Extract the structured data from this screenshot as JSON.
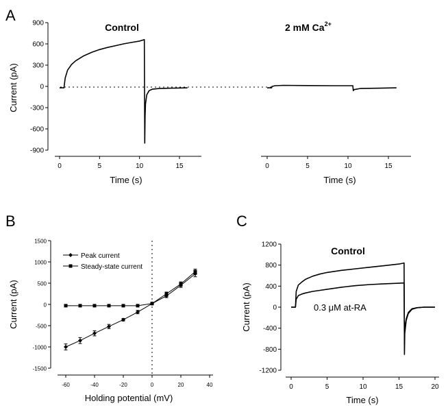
{
  "panels": {
    "a": {
      "letter": "A",
      "ylabel": "Current (pA)",
      "xlabel_left": "Time (s)",
      "xlabel_right": "Time (s)",
      "yticks": [
        "900",
        "600",
        "300",
        "0",
        "-300",
        "-600",
        "-900"
      ],
      "xticks_left": [
        "0",
        "5",
        "10",
        "15"
      ],
      "xticks_right": [
        "0",
        "5",
        "10",
        "15"
      ],
      "control_label": "Control",
      "ca_label": "2 mM Ca",
      "ca_superscript": "2+"
    },
    "b": {
      "letter": "B",
      "ylabel": "Current (pA)",
      "xlabel": "Holding potential (mV)",
      "yticks": [
        "1500",
        "1000",
        "500",
        "0",
        "-500",
        "-1000",
        "-1500"
      ],
      "xticks": [
        "-60",
        "-40",
        "-20",
        "0",
        "20",
        "40"
      ],
      "legend_peak": "Peak current",
      "legend_steady": "Steady-state current"
    },
    "c": {
      "letter": "C",
      "ylabel": "Current (pA)",
      "xlabel": "Time (s)",
      "yticks": [
        "1200",
        "800",
        "400",
        "0",
        "-400",
        "-800",
        "-1200"
      ],
      "xticks": [
        "0",
        "5",
        "10",
        "15",
        "20"
      ],
      "control_label": "Control",
      "atra_label": "0.3 μM at-RA"
    }
  },
  "chart_data": [
    {
      "panel": "A-left",
      "type": "line",
      "title": "Control",
      "xlabel": "Time (s)",
      "ylabel": "Current (pA)",
      "xlim": [
        -1,
        16.5
      ],
      "ylim": [
        -900,
        900
      ],
      "grid": false,
      "series": [
        {
          "x": [
            0,
            0.55,
            0.7,
            1,
            1.5,
            2,
            3,
            4,
            5,
            6,
            7,
            8,
            9,
            10,
            10.6,
            10.65,
            10.7,
            10.75,
            10.9,
            11.2,
            11.6,
            12.5,
            14,
            16
          ],
          "y": [
            -20,
            -20,
            120,
            230,
            310,
            360,
            430,
            480,
            520,
            550,
            575,
            600,
            620,
            640,
            660,
            -800,
            -420,
            -250,
            -120,
            -60,
            -40,
            -30,
            -25,
            -20
          ]
        }
      ]
    },
    {
      "panel": "A-right",
      "type": "line",
      "title": "2 mM Ca2+",
      "xlabel": "Time (s)",
      "ylabel": "Current (pA)",
      "xlim": [
        -1,
        16.5
      ],
      "ylim": [
        -900,
        900
      ],
      "grid": false,
      "series": [
        {
          "x": [
            0,
            0.55,
            0.6,
            1,
            2,
            5,
            8,
            10.6,
            10.65,
            10.75,
            11.5,
            14,
            16
          ],
          "y": [
            -20,
            -20,
            0,
            10,
            15,
            12,
            10,
            10,
            -60,
            -45,
            -30,
            -25,
            -20
          ]
        }
      ]
    },
    {
      "panel": "B",
      "type": "line",
      "xlabel": "Holding potential (mV)",
      "ylabel": "Current (pA)",
      "xlim": [
        -70,
        40
      ],
      "ylim": [
        -1500,
        1500
      ],
      "legend_position": "top-left",
      "series": [
        {
          "name": "Peak current",
          "marker": "diamond",
          "x": [
            -60,
            -50,
            -40,
            -30,
            -20,
            -10,
            0,
            10,
            20,
            30
          ],
          "y": [
            -1000,
            -850,
            -680,
            -520,
            -360,
            -180,
            20,
            200,
            450,
            720
          ],
          "err": [
            70,
            70,
            60,
            50,
            30,
            40,
            20,
            40,
            50,
            70
          ]
        },
        {
          "name": "Steady-state current",
          "marker": "square",
          "x": [
            -60,
            -50,
            -40,
            -30,
            -20,
            -10,
            0,
            10,
            20,
            30
          ],
          "y": [
            -30,
            -30,
            -30,
            -30,
            -30,
            -30,
            20,
            250,
            480,
            770
          ],
          "err": [
            10,
            10,
            10,
            10,
            10,
            10,
            20,
            40,
            50,
            60
          ]
        }
      ]
    },
    {
      "panel": "C",
      "type": "line",
      "xlabel": "Time (s)",
      "ylabel": "Current (pA)",
      "xlim": [
        -1,
        21
      ],
      "ylim": [
        -1200,
        1200
      ],
      "series": [
        {
          "name": "Control",
          "x": [
            0,
            0.6,
            0.7,
            1,
            1.5,
            2,
            3,
            4,
            5,
            7,
            9,
            11,
            13,
            15,
            15.7,
            15.75,
            15.8,
            16,
            16.3,
            16.8,
            17.5,
            18.5,
            20
          ],
          "y": [
            0,
            0,
            300,
            420,
            480,
            530,
            590,
            630,
            660,
            700,
            730,
            760,
            790,
            820,
            840,
            -900,
            -500,
            -250,
            -120,
            -40,
            -10,
            0,
            0
          ]
        },
        {
          "name": "0.3 μM at-RA",
          "x": [
            0,
            0.6,
            0.7,
            1,
            1.5,
            2,
            3,
            4,
            5,
            7,
            9,
            11,
            13,
            15,
            15.7,
            15.75,
            15.8,
            16,
            16.3,
            16.8,
            17.5,
            18.5,
            20
          ],
          "y": [
            0,
            0,
            150,
            220,
            250,
            270,
            300,
            320,
            340,
            380,
            410,
            430,
            445,
            455,
            460,
            -700,
            -380,
            -220,
            -100,
            -30,
            -10,
            0,
            0
          ]
        }
      ]
    }
  ]
}
